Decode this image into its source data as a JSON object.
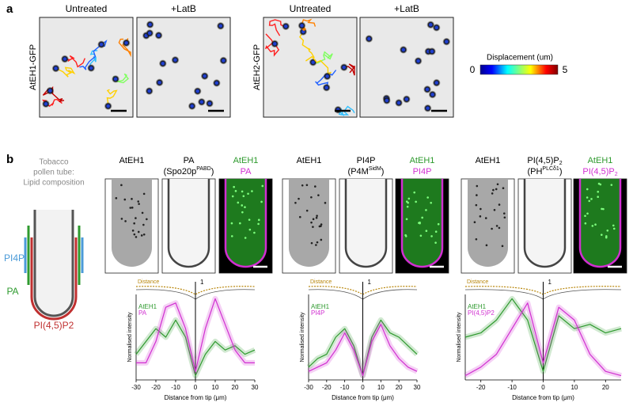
{
  "panel_a": {
    "label": "a",
    "groups": [
      {
        "row_label": "AtEH1-GFP",
        "columns": [
          "Untreated",
          "+LatB"
        ]
      },
      {
        "row_label": "AtEH2-GFP",
        "columns": [
          "Untreated",
          "+LatB"
        ]
      }
    ],
    "colorbar": {
      "title": "Displacement (um)",
      "min": 0,
      "max": 5
    }
  },
  "panel_b": {
    "label": "b",
    "schematic": {
      "title": [
        "Tobacco",
        "pollen tube:",
        "Lipid composition"
      ],
      "labels": [
        "PI4P",
        "PA",
        "PI(4,5)P2"
      ]
    },
    "groups": [
      {
        "headers": [
          [
            [
              {
                "t": "AtEH1"
              }
            ]
          ],
          [
            [
              {
                "t": "PA"
              }
            ],
            [
              {
                "t": "(Spo20p"
              },
              {
                "t": "PABD",
                "s": "sup"
              },
              {
                "t": ")"
              }
            ]
          ],
          [
            [
              {
                "t": "AtEH1",
                "c": "#2e9a2e"
              }
            ],
            [
              {
                "t": "PA",
                "c": "#d12fd1"
              }
            ]
          ]
        ],
        "plot": {
          "type": "line",
          "distance_label": "Distance",
          "distance_tick": 1,
          "ylabel": "Normalised intensity",
          "xlabel": "Distance from tip (μm)",
          "xlim": [
            -30,
            30
          ],
          "xticks": [
            -30,
            -20,
            -10,
            0,
            10,
            20,
            30
          ],
          "ylim": [
            0,
            1
          ],
          "x": [
            -30,
            -25,
            -20,
            -15,
            -10,
            -5,
            0,
            5,
            10,
            15,
            20,
            25,
            30
          ],
          "series": [
            {
              "name": "AtEH1",
              "color": "#2e9a2e",
              "values": [
                0.3,
                0.45,
                0.6,
                0.5,
                0.7,
                0.5,
                0.05,
                0.3,
                0.45,
                0.35,
                0.4,
                0.3,
                0.35
              ]
            },
            {
              "name": "PA",
              "color": "#d12fd1",
              "values": [
                0.2,
                0.2,
                0.45,
                0.85,
                0.9,
                0.6,
                0.1,
                0.6,
                0.95,
                0.65,
                0.35,
                0.2,
                0.2
              ]
            }
          ]
        }
      },
      {
        "headers": [
          [
            [
              {
                "t": "AtEH1"
              }
            ]
          ],
          [
            [
              {
                "t": "PI4P"
              }
            ],
            [
              {
                "t": "(P4M"
              },
              {
                "t": "SidM",
                "s": "sup"
              },
              {
                "t": ")"
              }
            ]
          ],
          [
            [
              {
                "t": "AtEH1",
                "c": "#2e9a2e"
              }
            ],
            [
              {
                "t": "PI4P",
                "c": "#d12fd1"
              }
            ]
          ]
        ],
        "plot": {
          "type": "line",
          "distance_label": "Distance",
          "distance_tick": 1,
          "ylabel": "Normalised intensity",
          "xlabel": "Distance from tip (μm)",
          "xlim": [
            -30,
            30
          ],
          "xticks": [
            -30,
            -20,
            -10,
            0,
            10,
            20,
            30
          ],
          "ylim": [
            0,
            1
          ],
          "x": [
            -30,
            -25,
            -20,
            -15,
            -10,
            -5,
            0,
            5,
            10,
            15,
            20,
            25,
            30
          ],
          "series": [
            {
              "name": "AtEH1",
              "color": "#2e9a2e",
              "values": [
                0.15,
                0.25,
                0.3,
                0.5,
                0.6,
                0.4,
                0.05,
                0.5,
                0.7,
                0.55,
                0.5,
                0.4,
                0.3
              ]
            },
            {
              "name": "PI4P",
              "color": "#d12fd1",
              "values": [
                0.1,
                0.15,
                0.2,
                0.35,
                0.55,
                0.35,
                0.05,
                0.45,
                0.65,
                0.4,
                0.25,
                0.15,
                0.1
              ]
            }
          ]
        }
      },
      {
        "headers": [
          [
            [
              {
                "t": "AtEH1"
              }
            ]
          ],
          [
            [
              {
                "t": "PI(4,5)P"
              },
              {
                "t": "2",
                "s": "sub"
              }
            ],
            [
              {
                "t": "(PH"
              },
              {
                "t": "PLCδ1",
                "s": "sup"
              },
              {
                "t": ")"
              }
            ]
          ],
          [
            [
              {
                "t": "AtEH1",
                "c": "#2e9a2e"
              }
            ],
            [
              {
                "t": "PI(4,5)P",
                "c": "#d12fd1"
              },
              {
                "t": "2",
                "s": "sub",
                "c": "#d12fd1"
              }
            ]
          ]
        ],
        "plot": {
          "type": "line",
          "distance_label": "Distance",
          "distance_tick": 1,
          "ylabel": "Normalised intensity",
          "xlabel": "Distance from tip (μm)",
          "xlim": [
            -25,
            25
          ],
          "xticks": [
            -20,
            -10,
            0,
            10,
            20
          ],
          "ylim": [
            0,
            1
          ],
          "x": [
            -25,
            -20,
            -15,
            -10,
            -5,
            0,
            5,
            10,
            15,
            20,
            25
          ],
          "series": [
            {
              "name": "AtEH1",
              "color": "#2e9a2e",
              "values": [
                0.5,
                0.55,
                0.7,
                0.95,
                0.7,
                0.1,
                0.75,
                0.6,
                0.65,
                0.55,
                0.6
              ]
            },
            {
              "name": "PI(4,5)P2",
              "color": "#d12fd1",
              "values": [
                0.05,
                0.15,
                0.3,
                0.6,
                0.9,
                0.2,
                0.85,
                0.7,
                0.3,
                0.1,
                0.05
              ]
            }
          ]
        }
      }
    ]
  }
}
